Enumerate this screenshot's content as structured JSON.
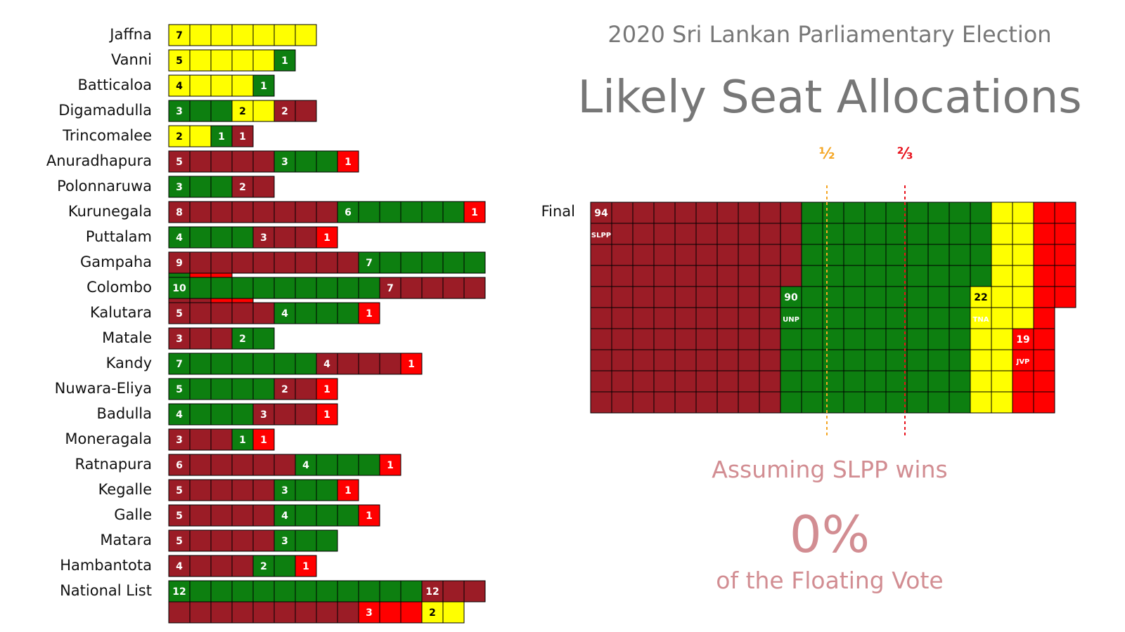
{
  "header": {
    "title": "2020 Sri Lankan Parliamentary Election",
    "headline": "Likely Seat Allocations"
  },
  "thresholds": [
    {
      "label": "½",
      "seats": 113,
      "color": "#f5a623"
    },
    {
      "label": "⅔",
      "seats": 150,
      "color": "#e8101b"
    }
  ],
  "scenario": {
    "line1": "Assuming SLPP wins",
    "value": "0%",
    "line2": "of the Floating Vote"
  },
  "party_colors": {
    "SLPP": "#9b1c26",
    "UNP": "#0d7f10",
    "TNA": "#ffff00",
    "JVP": "#ff0000"
  },
  "chart_data": {
    "type": "bar",
    "stacked": true,
    "title": "Likely Seat Allocations",
    "parties": [
      "SLPP",
      "UNP",
      "TNA",
      "JVP"
    ],
    "districts": [
      {
        "name": "Jaffna",
        "segments": [
          {
            "party": "TNA",
            "seats": 7
          }
        ]
      },
      {
        "name": "Vanni",
        "segments": [
          {
            "party": "TNA",
            "seats": 5
          },
          {
            "party": "UNP",
            "seats": 1
          }
        ]
      },
      {
        "name": "Batticaloa",
        "segments": [
          {
            "party": "TNA",
            "seats": 4
          },
          {
            "party": "UNP",
            "seats": 1
          }
        ]
      },
      {
        "name": "Digamadulla",
        "segments": [
          {
            "party": "UNP",
            "seats": 3
          },
          {
            "party": "TNA",
            "seats": 2
          },
          {
            "party": "SLPP",
            "seats": 2
          }
        ]
      },
      {
        "name": "Trincomalee",
        "segments": [
          {
            "party": "TNA",
            "seats": 2
          },
          {
            "party": "UNP",
            "seats": 1
          },
          {
            "party": "SLPP",
            "seats": 1
          }
        ]
      },
      {
        "name": "Anuradhapura",
        "segments": [
          {
            "party": "SLPP",
            "seats": 5
          },
          {
            "party": "UNP",
            "seats": 3
          },
          {
            "party": "JVP",
            "seats": 1
          }
        ]
      },
      {
        "name": "Polonnaruwa",
        "segments": [
          {
            "party": "UNP",
            "seats": 3
          },
          {
            "party": "SLPP",
            "seats": 2
          }
        ]
      },
      {
        "name": "Kurunegala",
        "segments": [
          {
            "party": "SLPP",
            "seats": 8
          },
          {
            "party": "UNP",
            "seats": 6
          },
          {
            "party": "JVP",
            "seats": 1
          }
        ]
      },
      {
        "name": "Puttalam",
        "segments": [
          {
            "party": "UNP",
            "seats": 4
          },
          {
            "party": "SLPP",
            "seats": 3
          },
          {
            "party": "JVP",
            "seats": 1
          }
        ]
      },
      {
        "name": "Gampaha",
        "segments": [
          {
            "party": "SLPP",
            "seats": 9
          },
          {
            "party": "UNP",
            "seats": 7
          },
          {
            "party": "JVP",
            "seats": 2
          }
        ]
      },
      {
        "name": "Colombo",
        "segments": [
          {
            "party": "UNP",
            "seats": 10
          },
          {
            "party": "SLPP",
            "seats": 7
          },
          {
            "party": "JVP",
            "seats": 2
          }
        ]
      },
      {
        "name": "Kalutara",
        "segments": [
          {
            "party": "SLPP",
            "seats": 5
          },
          {
            "party": "UNP",
            "seats": 4
          },
          {
            "party": "JVP",
            "seats": 1
          }
        ]
      },
      {
        "name": "Matale",
        "segments": [
          {
            "party": "SLPP",
            "seats": 3
          },
          {
            "party": "UNP",
            "seats": 2
          }
        ]
      },
      {
        "name": "Kandy",
        "segments": [
          {
            "party": "UNP",
            "seats": 7
          },
          {
            "party": "SLPP",
            "seats": 4
          },
          {
            "party": "JVP",
            "seats": 1
          }
        ]
      },
      {
        "name": "Nuwara-Eliya",
        "segments": [
          {
            "party": "UNP",
            "seats": 5
          },
          {
            "party": "SLPP",
            "seats": 2
          },
          {
            "party": "JVP",
            "seats": 1
          }
        ]
      },
      {
        "name": "Badulla",
        "segments": [
          {
            "party": "UNP",
            "seats": 4
          },
          {
            "party": "SLPP",
            "seats": 3
          },
          {
            "party": "JVP",
            "seats": 1
          }
        ]
      },
      {
        "name": "Moneragala",
        "segments": [
          {
            "party": "SLPP",
            "seats": 3
          },
          {
            "party": "UNP",
            "seats": 1
          },
          {
            "party": "JVP",
            "seats": 1
          }
        ]
      },
      {
        "name": "Ratnapura",
        "segments": [
          {
            "party": "SLPP",
            "seats": 6
          },
          {
            "party": "UNP",
            "seats": 4
          },
          {
            "party": "JVP",
            "seats": 1
          }
        ]
      },
      {
        "name": "Kegalle",
        "segments": [
          {
            "party": "SLPP",
            "seats": 5
          },
          {
            "party": "UNP",
            "seats": 3
          },
          {
            "party": "JVP",
            "seats": 1
          }
        ]
      },
      {
        "name": "Galle",
        "segments": [
          {
            "party": "SLPP",
            "seats": 5
          },
          {
            "party": "UNP",
            "seats": 4
          },
          {
            "party": "JVP",
            "seats": 1
          }
        ]
      },
      {
        "name": "Matara",
        "segments": [
          {
            "party": "SLPP",
            "seats": 5
          },
          {
            "party": "UNP",
            "seats": 3
          }
        ]
      },
      {
        "name": "Hambantota",
        "segments": [
          {
            "party": "SLPP",
            "seats": 4
          },
          {
            "party": "UNP",
            "seats": 2
          },
          {
            "party": "JVP",
            "seats": 1
          }
        ]
      },
      {
        "name": "National List",
        "segments": [
          {
            "party": "UNP",
            "seats": 12
          },
          {
            "party": "SLPP",
            "seats": 12
          },
          {
            "party": "JVP",
            "seats": 3
          },
          {
            "party": "TNA",
            "seats": 2
          }
        ]
      }
    ],
    "final": {
      "label": "Final",
      "totals": [
        {
          "party": "SLPP",
          "seats": 94
        },
        {
          "party": "UNP",
          "seats": 90
        },
        {
          "party": "TNA",
          "seats": 22
        },
        {
          "party": "JVP",
          "seats": 19
        }
      ],
      "total_seats": 225
    }
  }
}
